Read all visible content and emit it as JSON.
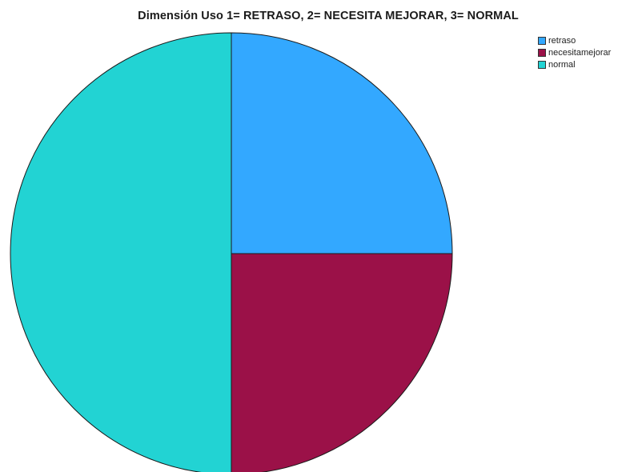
{
  "chart_data": {
    "type": "pie",
    "title": "Dimensión Uso 1= RETRASO, 2= NECESITA MEJORAR, 3= NORMAL",
    "categories": [
      "retraso",
      "necesitamejorar",
      "normal"
    ],
    "values": [
      25,
      25,
      50
    ],
    "colors": [
      "#33a8ff",
      "#9b1148",
      "#22d3d3"
    ],
    "start_angle_deg": 0,
    "direction": "clockwise",
    "legend_position": "top-right"
  }
}
